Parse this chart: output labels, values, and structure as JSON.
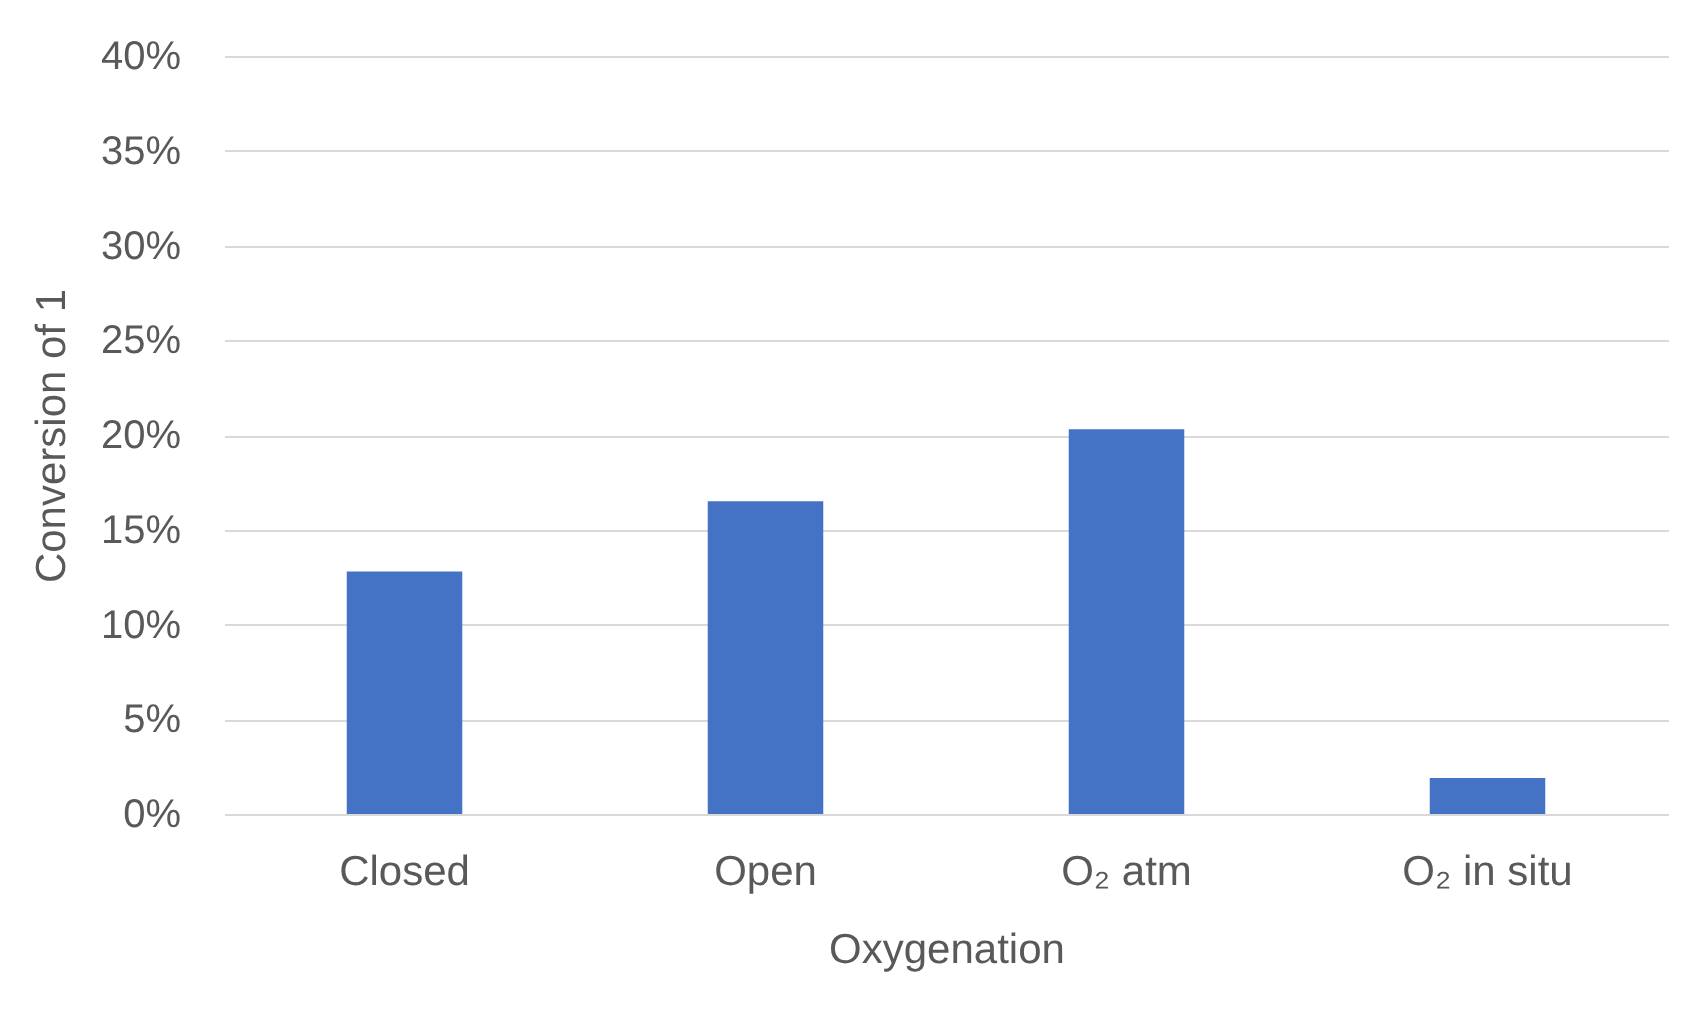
{
  "chart_data": {
    "type": "bar",
    "xlabel": "Oxygenation",
    "ylabel": "Conversion of 1",
    "categories": [
      "Closed",
      "Open",
      "O₂ atm",
      "O₂ in situ"
    ],
    "values": [
      12.8,
      16.5,
      20.3,
      1.9
    ],
    "color": "#4472c4",
    "ylim": [
      0,
      40
    ],
    "yticks": [
      {
        "value": 0,
        "label": "0%"
      },
      {
        "value": 5,
        "label": "5%"
      },
      {
        "value": 10,
        "label": "10%"
      },
      {
        "value": 15,
        "label": "15%"
      },
      {
        "value": 20,
        "label": "20%"
      },
      {
        "value": 25,
        "label": "25%"
      },
      {
        "value": 30,
        "label": "30%"
      },
      {
        "value": 35,
        "label": "35%"
      },
      {
        "value": 40,
        "label": "40%"
      }
    ],
    "grid": "y"
  }
}
